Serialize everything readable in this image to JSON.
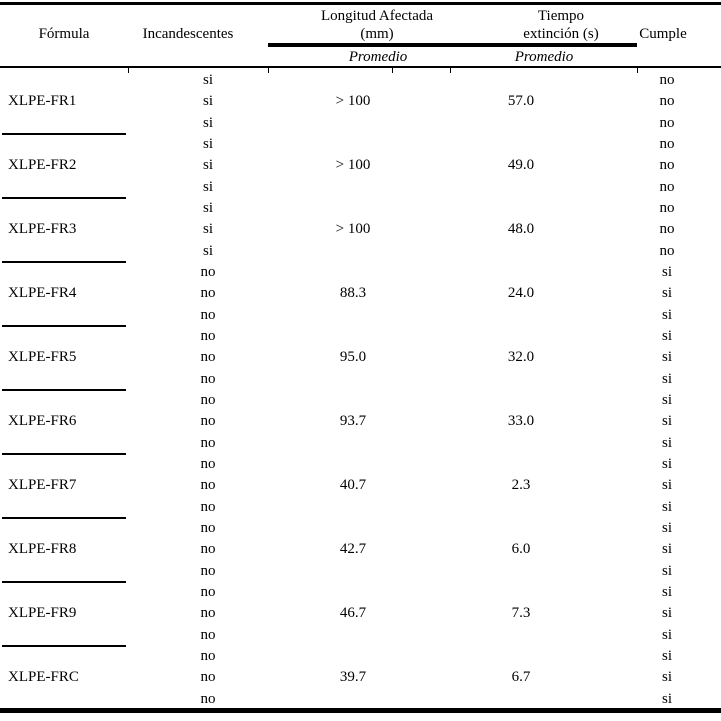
{
  "ink_color": "#000000",
  "background_color": "#ffffff",
  "table": {
    "headers": {
      "formula": "Fórmula",
      "incandescentes": "Incandescentes",
      "longitud_line1": "Longitud Afectada",
      "longitud_line2": "(mm)",
      "tiempo_line1": "Tiempo",
      "tiempo_line2": "extinción (s)",
      "cumple": "Cumple",
      "promedio": "Promedio"
    },
    "groups": [
      {
        "formula": "XLPE-FR1",
        "incandescentes": [
          "si",
          "si",
          "si"
        ],
        "longitud_promedio": "> 100",
        "tiempo_promedio": "57.0",
        "cumple": [
          "no",
          "no",
          "no"
        ]
      },
      {
        "formula": "XLPE-FR2",
        "incandescentes": [
          "si",
          "si",
          "si"
        ],
        "longitud_promedio": "> 100",
        "tiempo_promedio": "49.0",
        "cumple": [
          "no",
          "no",
          "no"
        ]
      },
      {
        "formula": "XLPE-FR3",
        "incandescentes": [
          "si",
          "si",
          "si"
        ],
        "longitud_promedio": "> 100",
        "tiempo_promedio": "48.0",
        "cumple": [
          "no",
          "no",
          "no"
        ]
      },
      {
        "formula": "XLPE-FR4",
        "incandescentes": [
          "no",
          "no",
          "no"
        ],
        "longitud_promedio": "88.3",
        "tiempo_promedio": "24.0",
        "cumple": [
          "si",
          "si",
          "si"
        ]
      },
      {
        "formula": "XLPE-FR5",
        "incandescentes": [
          "no",
          "no",
          "no"
        ],
        "longitud_promedio": "95.0",
        "tiempo_promedio": "32.0",
        "cumple": [
          "si",
          "si",
          "si"
        ]
      },
      {
        "formula": "XLPE-FR6",
        "incandescentes": [
          "no",
          "no",
          "no"
        ],
        "longitud_promedio": "93.7",
        "tiempo_promedio": "33.0",
        "cumple": [
          "si",
          "si",
          "si"
        ]
      },
      {
        "formula": "XLPE-FR7",
        "incandescentes": [
          "no",
          "no",
          "no"
        ],
        "longitud_promedio": "40.7",
        "tiempo_promedio": "2.3",
        "cumple": [
          "si",
          "si",
          "si"
        ]
      },
      {
        "formula": "XLPE-FR8",
        "incandescentes": [
          "no",
          "no",
          "no"
        ],
        "longitud_promedio": "42.7",
        "tiempo_promedio": "6.0",
        "cumple": [
          "si",
          "si",
          "si"
        ]
      },
      {
        "formula": "XLPE-FR9",
        "incandescentes": [
          "no",
          "no",
          "no"
        ],
        "longitud_promedio": "46.7",
        "tiempo_promedio": "7.3",
        "cumple": [
          "si",
          "si",
          "si"
        ]
      },
      {
        "formula": "XLPE-FRC",
        "incandescentes": [
          "no",
          "no",
          "no"
        ],
        "longitud_promedio": "39.7",
        "tiempo_promedio": "6.7",
        "cumple": [
          "si",
          "si",
          "si"
        ]
      }
    ]
  }
}
